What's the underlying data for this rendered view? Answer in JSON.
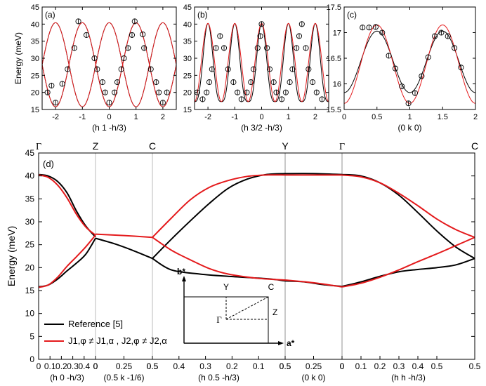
{
  "chart_data": [
    {
      "id": "a",
      "type": "line",
      "panel_label": "(a)",
      "xlabel": "(h 1 -h/3)",
      "ylabel": "Energy (meV)",
      "xlim": [
        -2.5,
        2.5
      ],
      "ylim": [
        15,
        45
      ],
      "xticks": [
        -2,
        -1,
        0,
        1,
        2
      ],
      "xtick_labels": [
        "-2",
        "-1",
        "0",
        "1",
        "2"
      ],
      "yticks": [
        15,
        20,
        25,
        30,
        35,
        40,
        45
      ],
      "ytick_labels": [
        "15",
        "20",
        "25",
        "30",
        "35",
        "40",
        "45"
      ],
      "series": [
        {
          "name": "Reference [5]",
          "color": "#000000",
          "shape": "cos",
          "period": 2,
          "min": 15.8,
          "max": 40.4,
          "peak_at": -1,
          "branches": 2
        },
        {
          "name": "J1,φ≠J1,α , J2,φ≠J2,α",
          "color": "#e41a1c",
          "shape": "cos",
          "period": 2,
          "min": 15.8,
          "max": 40.4,
          "peak_at": -1,
          "branches": 2
        }
      ],
      "points": [
        {
          "x": -2.3,
          "y": 20
        },
        {
          "x": -2.15,
          "y": 22
        },
        {
          "x": -2.0,
          "y": 17
        },
        {
          "x": -1.75,
          "y": 22.5
        },
        {
          "x": -1.55,
          "y": 26.8
        },
        {
          "x": -1.3,
          "y": 33
        },
        {
          "x": -1.15,
          "y": 40.8
        },
        {
          "x": -0.85,
          "y": 36.8
        },
        {
          "x": -0.55,
          "y": 30
        },
        {
          "x": -0.45,
          "y": 26.8
        },
        {
          "x": -0.25,
          "y": 23
        },
        {
          "x": -0.15,
          "y": 20
        },
        {
          "x": 0.0,
          "y": 17
        },
        {
          "x": 0.2,
          "y": 20
        },
        {
          "x": 0.3,
          "y": 23
        },
        {
          "x": 0.45,
          "y": 26.8
        },
        {
          "x": 0.55,
          "y": 30
        },
        {
          "x": 0.7,
          "y": 33
        },
        {
          "x": 0.85,
          "y": 36.8
        },
        {
          "x": 0.95,
          "y": 40.8
        },
        {
          "x": 1.25,
          "y": 37
        },
        {
          "x": 1.3,
          "y": 33
        },
        {
          "x": 1.55,
          "y": 26.8
        },
        {
          "x": 1.75,
          "y": 23
        },
        {
          "x": 1.85,
          "y": 20
        },
        {
          "x": 2.0,
          "y": 17
        },
        {
          "x": 2.15,
          "y": 20
        }
      ]
    },
    {
      "id": "b",
      "type": "line",
      "panel_label": "(b)",
      "xlabel": "(h 3/2 -h/3)",
      "xlim": [
        -2.5,
        2.5
      ],
      "ylim": [
        15,
        45
      ],
      "xticks": [
        -2,
        -1,
        0,
        1,
        2
      ],
      "xtick_labels": [
        "-2",
        "-1",
        "0",
        "1",
        "2"
      ],
      "yticks": [
        15,
        20,
        25,
        30,
        35,
        40,
        45
      ],
      "ytick_labels": [
        "15",
        "20",
        "25",
        "30",
        "35",
        "40",
        "45"
      ],
      "series": [
        {
          "name": "Reference [5]",
          "color": "#000000",
          "shape": "sharp",
          "period": 1,
          "min": 17.3,
          "max": 40.2,
          "peak_at": 0
        },
        {
          "name": "J1,φ≠J1,α , J2,φ≠J2,α",
          "color": "#e41a1c",
          "shape": "cos",
          "period": 1,
          "min": 17.3,
          "max": 40.2,
          "peak_at": 0
        }
      ],
      "points": [
        {
          "x": -2.4,
          "y": 20
        },
        {
          "x": -2.2,
          "y": 18
        },
        {
          "x": -2.05,
          "y": 20
        },
        {
          "x": -1.95,
          "y": 23
        },
        {
          "x": -1.85,
          "y": 26.8
        },
        {
          "x": -1.7,
          "y": 33
        },
        {
          "x": -1.55,
          "y": 36.5
        },
        {
          "x": -1.4,
          "y": 33
        },
        {
          "x": -1.25,
          "y": 26.8
        },
        {
          "x": -1.05,
          "y": 23
        },
        {
          "x": -0.9,
          "y": 20
        },
        {
          "x": -0.75,
          "y": 18
        },
        {
          "x": -0.55,
          "y": 20
        },
        {
          "x": -0.4,
          "y": 23
        },
        {
          "x": -0.3,
          "y": 26.8
        },
        {
          "x": -0.15,
          "y": 33
        },
        {
          "x": -0.05,
          "y": 36.5
        },
        {
          "x": 0.0,
          "y": 40
        },
        {
          "x": 0.2,
          "y": 33
        },
        {
          "x": 0.3,
          "y": 26.8
        },
        {
          "x": 0.45,
          "y": 23
        },
        {
          "x": 0.55,
          "y": 20
        },
        {
          "x": 0.75,
          "y": 18
        },
        {
          "x": 0.9,
          "y": 20
        },
        {
          "x": 1.05,
          "y": 23
        },
        {
          "x": 1.15,
          "y": 26.8
        },
        {
          "x": 1.3,
          "y": 33
        },
        {
          "x": 1.4,
          "y": 36.5
        },
        {
          "x": 1.5,
          "y": 40
        },
        {
          "x": 1.65,
          "y": 33
        },
        {
          "x": 1.75,
          "y": 26.8
        },
        {
          "x": 1.9,
          "y": 23
        },
        {
          "x": 2.05,
          "y": 20
        },
        {
          "x": 2.25,
          "y": 18
        }
      ]
    },
    {
      "id": "c",
      "type": "line",
      "panel_label": "(c)",
      "xlabel": "(0 k 0)",
      "xlim": [
        0,
        2
      ],
      "ylim": [
        15.5,
        17.5
      ],
      "xticks": [
        0,
        0.5,
        1,
        1.5,
        2
      ],
      "xtick_labels": [
        "0",
        "0.5",
        "1",
        "1.5",
        "2"
      ],
      "yticks": [
        15.5,
        16,
        16.5,
        17,
        17.5
      ],
      "ytick_labels": [
        "15.5",
        "16",
        "16.5",
        "17",
        "17.5"
      ],
      "series": [
        {
          "name": "Reference [5]",
          "color": "#000000",
          "shape": "cos",
          "period": 1,
          "min": 15.83,
          "max": 17.03,
          "peak_at": 0.5
        },
        {
          "name": "J1,φ≠J1,α , J2,φ≠J2,α",
          "color": "#e41a1c",
          "shape": "cos",
          "period": 1,
          "min": 15.62,
          "max": 17.15,
          "peak_at": 0.5
        }
      ],
      "points": [
        {
          "x": 0.28,
          "y": 17.1
        },
        {
          "x": 0.38,
          "y": 17.1
        },
        {
          "x": 0.48,
          "y": 17.11
        },
        {
          "x": 0.58,
          "y": 17.0
        },
        {
          "x": 0.68,
          "y": 16.55
        },
        {
          "x": 0.78,
          "y": 16.3
        },
        {
          "x": 0.88,
          "y": 15.95
        },
        {
          "x": 0.98,
          "y": 15.62
        },
        {
          "x": 1.08,
          "y": 15.82
        },
        {
          "x": 1.18,
          "y": 16.15
        },
        {
          "x": 1.28,
          "y": 16.52
        },
        {
          "x": 1.38,
          "y": 16.93
        },
        {
          "x": 1.48,
          "y": 17.0
        },
        {
          "x": 1.58,
          "y": 16.93
        },
        {
          "x": 1.68,
          "y": 16.7
        },
        {
          "x": 1.78,
          "y": 16.32
        }
      ]
    },
    {
      "id": "d",
      "type": "line",
      "panel_label": "(d)",
      "ylabel": "Energy (meV)",
      "ylim": [
        0,
        45
      ],
      "yticks": [
        0,
        5,
        10,
        15,
        20,
        25,
        30,
        35,
        40,
        45
      ],
      "ytick_labels": [
        "0",
        "5",
        "10",
        "15",
        "20",
        "25",
        "30",
        "35",
        "40",
        "45"
      ],
      "high_symmetry_labels": [
        "Γ",
        "Z",
        "C",
        "Y",
        "Γ",
        "C"
      ],
      "segments": [
        {
          "label": "(h 0 -h/3)",
          "ticks": [
            "0",
            "0.1",
            "0.2",
            "0.3",
            "0.4"
          ]
        },
        {
          "label": "(0.5 k -1/6)",
          "ticks": [
            "0",
            "0.25"
          ]
        },
        {
          "label": "(h 0.5 -h/3)",
          "ticks": [
            "0.5",
            "0.4",
            "0.3",
            "0.2",
            "0.1"
          ]
        },
        {
          "label": "(0 k 0)",
          "ticks": [
            "0.5",
            "0.25"
          ]
        },
        {
          "label": "(h h -h/3)",
          "ticks": [
            "0",
            "0.1",
            "0.2",
            "0.3",
            "0.4",
            "0.5"
          ]
        }
      ],
      "series": [
        {
          "name": "Reference [5]",
          "color": "#000000",
          "branches": [
            [
              [
                0,
                40.3
              ],
              [
                0.1,
                40.0
              ],
              [
                0.2,
                38.8
              ],
              [
                0.3,
                36.3
              ],
              [
                0.4,
                32.3
              ],
              [
                0.5,
                29.0
              ],
              [
                0.6,
                26.7
              ]
            ],
            [
              [
                0,
                15.8
              ],
              [
                0.1,
                16.2
              ],
              [
                0.2,
                17.5
              ],
              [
                0.3,
                19.3
              ],
              [
                0.4,
                21.0
              ],
              [
                0.5,
                23.0
              ],
              [
                0.6,
                26.4
              ]
            ],
            [
              [
                0.6,
                26.4
              ],
              [
                0.8,
                25.2
              ],
              [
                1.0,
                23.7
              ],
              [
                1.2,
                22.0
              ]
            ],
            [
              [
                1.2,
                22.0
              ],
              [
                1.4,
                19.5
              ],
              [
                1.7,
                18.6
              ],
              [
                2.0,
                18.1
              ],
              [
                2.4,
                17.6
              ],
              [
                2.6,
                17.1
              ]
            ],
            [
              [
                1.2,
                22.0
              ],
              [
                1.4,
                26.2
              ],
              [
                1.6,
                30.2
              ],
              [
                1.8,
                34.0
              ],
              [
                2.0,
                37.3
              ],
              [
                2.2,
                39.3
              ],
              [
                2.4,
                40.3
              ],
              [
                2.6,
                40.5
              ]
            ],
            [
              [
                2.6,
                17.1
              ],
              [
                2.8,
                16.9
              ],
              [
                3.0,
                16.3
              ],
              [
                3.2,
                15.9
              ]
            ],
            [
              [
                2.6,
                40.5
              ],
              [
                2.9,
                40.5
              ],
              [
                3.2,
                40.3
              ]
            ],
            [
              [
                3.2,
                15.9
              ],
              [
                3.4,
                16.9
              ],
              [
                3.6,
                18.1
              ],
              [
                3.8,
                19.1
              ],
              [
                4.0,
                19.6
              ],
              [
                4.2,
                20.0
              ],
              [
                4.4,
                20.6
              ],
              [
                4.6,
                22.0
              ]
            ],
            [
              [
                3.2,
                40.3
              ],
              [
                3.4,
                40.0
              ],
              [
                3.6,
                38.5
              ],
              [
                3.8,
                35.8
              ],
              [
                4.0,
                32.0
              ],
              [
                4.2,
                28.0
              ],
              [
                4.4,
                24.5
              ],
              [
                4.6,
                22.0
              ]
            ]
          ]
        },
        {
          "name": "J1,φ≠J1,α , J2,φ≠J2,α",
          "color": "#e41a1c",
          "branches": [
            [
              [
                0,
                40.2
              ],
              [
                0.1,
                39.7
              ],
              [
                0.2,
                38.0
              ],
              [
                0.3,
                35.2
              ],
              [
                0.4,
                31.6
              ],
              [
                0.5,
                28.8
              ],
              [
                0.6,
                27.1
              ]
            ],
            [
              [
                0,
                15.7
              ],
              [
                0.1,
                16.2
              ],
              [
                0.2,
                17.9
              ],
              [
                0.3,
                20.3
              ],
              [
                0.4,
                22.4
              ],
              [
                0.5,
                24.6
              ],
              [
                0.6,
                27.1
              ]
            ],
            [
              [
                0.6,
                27.3
              ],
              [
                0.9,
                27.0
              ],
              [
                1.2,
                26.6
              ]
            ],
            [
              [
                1.2,
                26.6
              ],
              [
                1.4,
                23.8
              ],
              [
                1.6,
                21.7
              ],
              [
                1.8,
                19.8
              ],
              [
                2.0,
                18.6
              ],
              [
                2.3,
                17.7
              ],
              [
                2.6,
                17.3
              ]
            ],
            [
              [
                1.2,
                26.6
              ],
              [
                1.4,
                30.8
              ],
              [
                1.6,
                34.8
              ],
              [
                1.8,
                37.5
              ],
              [
                2.0,
                39.0
              ],
              [
                2.2,
                39.9
              ],
              [
                2.4,
                40.2
              ],
              [
                2.6,
                40.2
              ]
            ],
            [
              [
                2.6,
                17.3
              ],
              [
                2.9,
                16.7
              ],
              [
                3.2,
                15.8
              ]
            ],
            [
              [
                2.6,
                40.2
              ],
              [
                2.9,
                40.2
              ],
              [
                3.2,
                40.2
              ]
            ],
            [
              [
                3.2,
                15.8
              ],
              [
                3.4,
                16.6
              ],
              [
                3.6,
                17.9
              ],
              [
                3.8,
                19.5
              ],
              [
                4.0,
                21.3
              ],
              [
                4.2,
                23.0
              ],
              [
                4.4,
                24.8
              ],
              [
                4.6,
                26.6
              ]
            ],
            [
              [
                3.2,
                40.2
              ],
              [
                3.4,
                39.8
              ],
              [
                3.6,
                38.5
              ],
              [
                3.8,
                36.2
              ],
              [
                4.0,
                33.5
              ],
              [
                4.2,
                30.6
              ],
              [
                4.4,
                28.3
              ],
              [
                4.6,
                26.6
              ]
            ]
          ]
        }
      ],
      "legend": [
        {
          "label": "Reference [5]",
          "color": "#000000"
        },
        {
          "label": "J1,φ ≠ J1,α , J2,φ ≠ J2,α",
          "color": "#e41a1c"
        }
      ],
      "inset": {
        "axis_x_label": "a*",
        "axis_y_label": "b*",
        "labels": [
          "Y",
          "C",
          "Γ",
          "Z"
        ]
      }
    }
  ]
}
